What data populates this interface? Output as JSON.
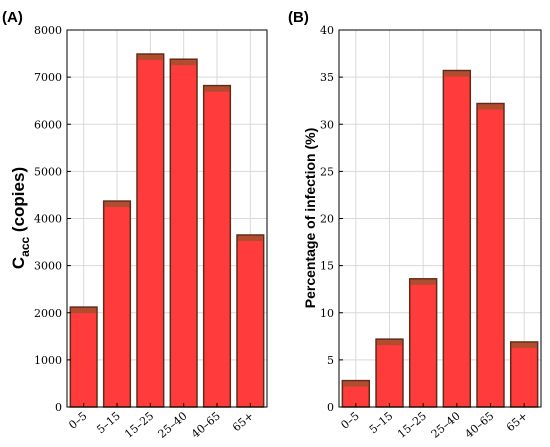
{
  "chart_data": [
    {
      "type": "bar",
      "panel_label": "(A)",
      "categories": [
        "0–5",
        "5–15",
        "15–25",
        "25–40",
        "40–65",
        "65+"
      ],
      "values": [
        2120,
        4370,
        7490,
        7380,
        6820,
        3650
      ],
      "ylabel_main": "C",
      "ylabel_sub": "acc",
      "ylabel_rest": " (copies)",
      "ylim": [
        0,
        8000
      ],
      "yticks": [
        0,
        1000,
        2000,
        3000,
        4000,
        5000,
        6000,
        7000,
        8000
      ],
      "grid": true
    },
    {
      "type": "bar",
      "panel_label": "(B)",
      "categories": [
        "0–5",
        "5–15",
        "15–25",
        "25–40",
        "40–65",
        "65+"
      ],
      "values": [
        2.8,
        7.2,
        13.6,
        35.7,
        32.2,
        6.9
      ],
      "ylabel": "Percentage of infection (%)",
      "ylim": [
        0,
        40
      ],
      "yticks": [
        0,
        5,
        10,
        15,
        20,
        25,
        30,
        35,
        40
      ],
      "grid": true
    }
  ],
  "colors": {
    "bar_fill": "#ff3b3b",
    "bar_edge": "#5a2e1a",
    "grid": "#d9d9d9"
  }
}
